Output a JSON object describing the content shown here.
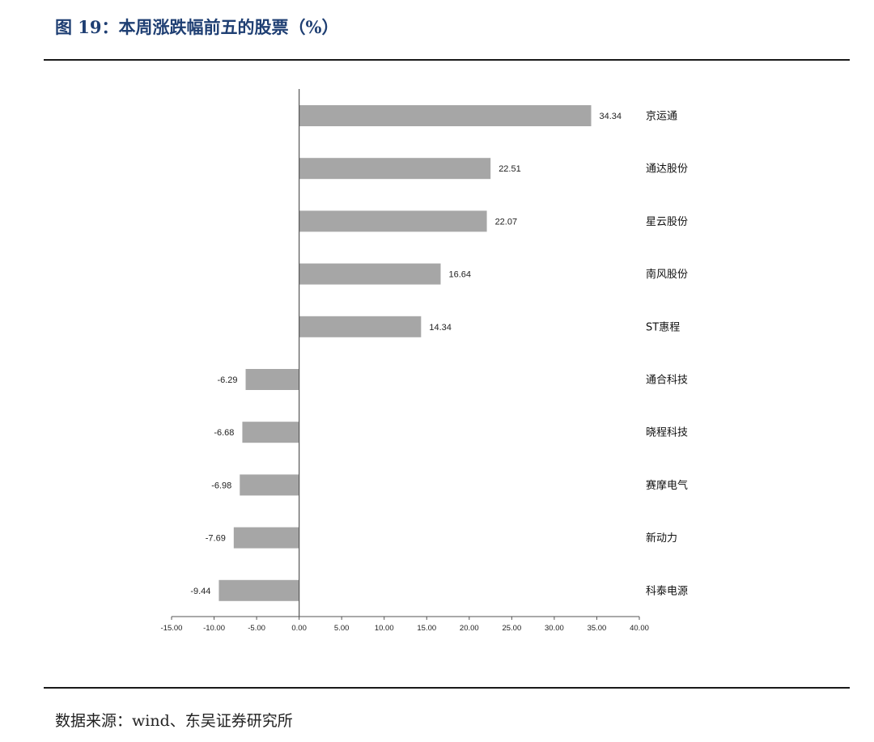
{
  "figure": {
    "title": "图 19：本周涨跌幅前五的股票（%）",
    "source": "数据来源：wind、东吴证券研究所"
  },
  "chart_data": {
    "type": "bar",
    "orientation": "horizontal",
    "categories": [
      "京运通",
      "通达股份",
      "星云股份",
      "南风股份",
      "ST惠程",
      "通合科技",
      "晓程科技",
      "赛摩电气",
      "新动力",
      "科泰电源"
    ],
    "values": [
      34.34,
      22.51,
      22.07,
      16.64,
      14.34,
      -6.29,
      -6.68,
      -6.98,
      -7.69,
      -9.44
    ],
    "value_labels": [
      "34.34",
      "22.51",
      "22.07",
      "16.64",
      "14.34",
      "-6.29",
      "-6.68",
      "-6.98",
      "-7.69",
      "-9.44"
    ],
    "xlim": [
      -15,
      40
    ],
    "x_ticks": [
      -15,
      -10,
      -5,
      0,
      5,
      10,
      15,
      20,
      25,
      30,
      35,
      40
    ],
    "x_tick_labels": [
      "-15.00",
      "-10.00",
      "-5.00",
      "0.00",
      "5.00",
      "10.00",
      "15.00",
      "20.00",
      "25.00",
      "30.00",
      "35.00",
      "40.00"
    ],
    "bar_color": "#a6a6a6",
    "grid": false,
    "legend": "none",
    "xlabel": "",
    "ylabel": ""
  }
}
